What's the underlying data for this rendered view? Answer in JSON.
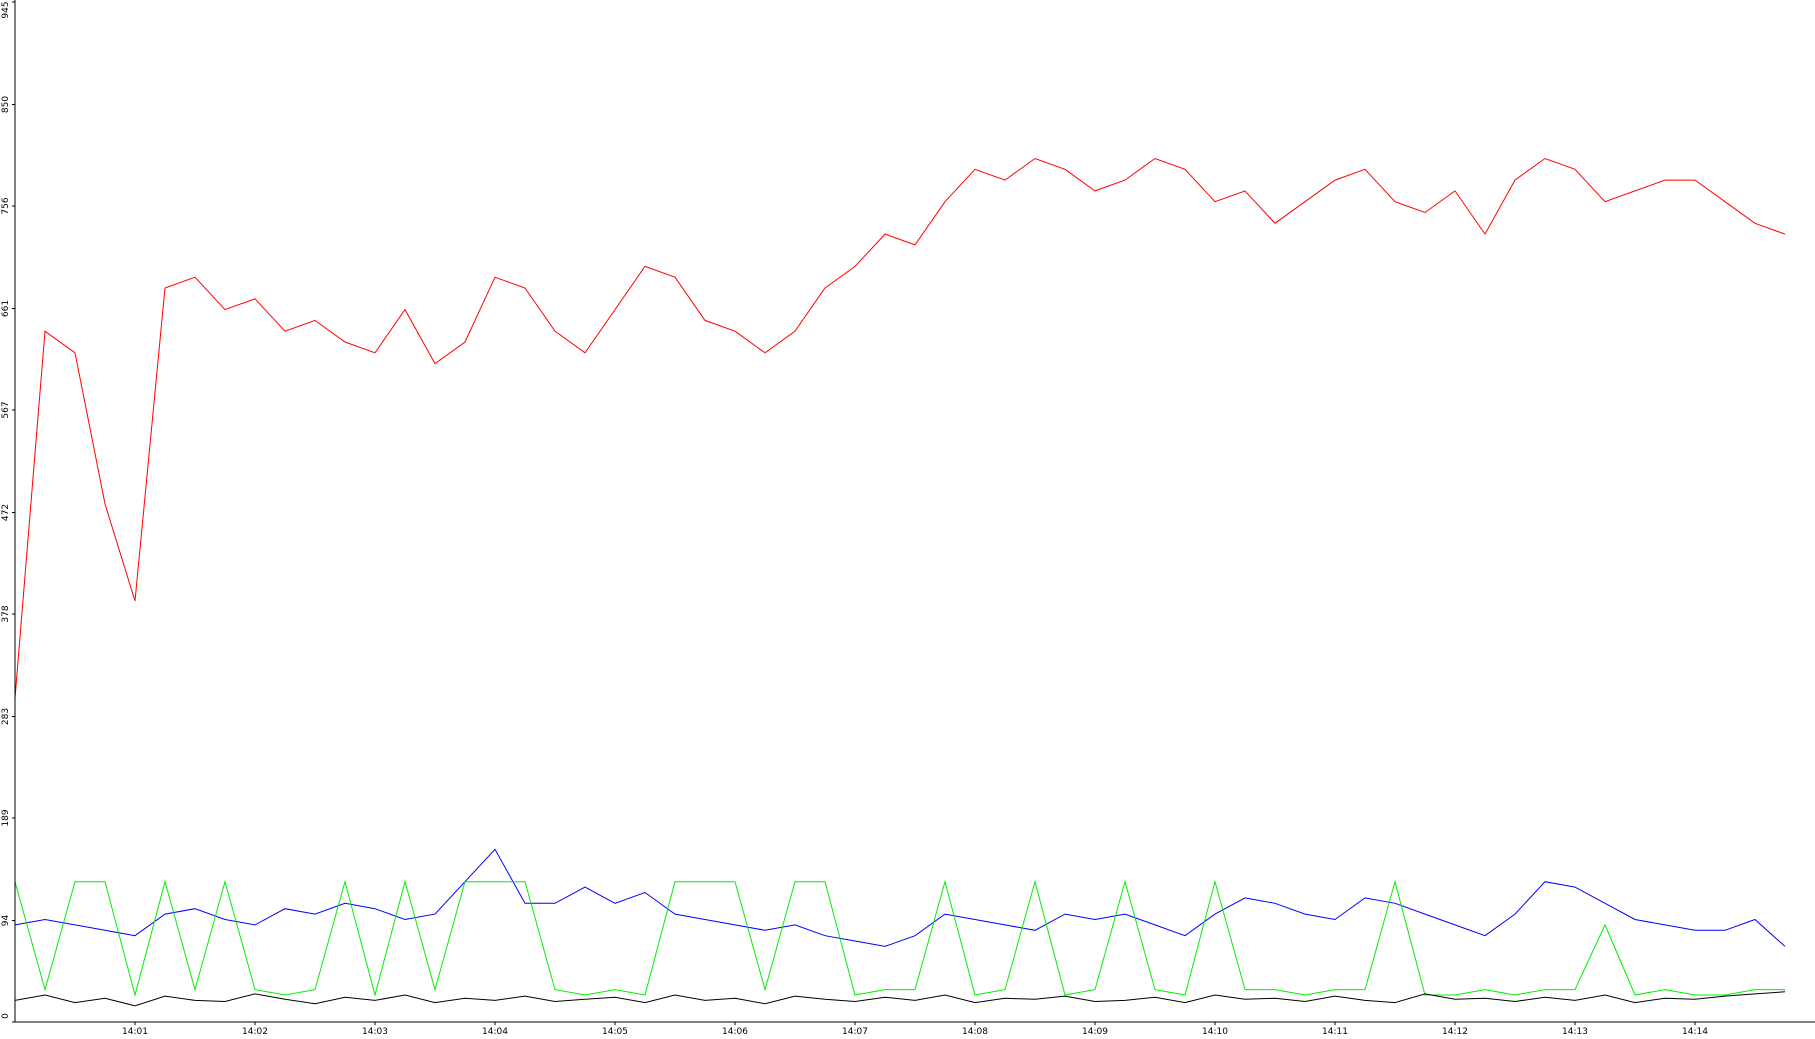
{
  "chart_data": {
    "type": "line",
    "categories": [
      null,
      null,
      null,
      null,
      "14:01",
      null,
      null,
      null,
      "14:02",
      null,
      null,
      null,
      "14:03",
      null,
      null,
      null,
      "14:04",
      null,
      null,
      null,
      "14:05",
      null,
      null,
      null,
      "14:06",
      null,
      null,
      null,
      "14:07",
      null,
      null,
      null,
      "14:08",
      null,
      null,
      null,
      "14:09",
      null,
      null,
      null,
      "14:10",
      null,
      null,
      null,
      "14:11",
      null,
      null,
      null,
      "14:12",
      null,
      null,
      null,
      "14:13",
      null,
      null,
      null,
      "14:14",
      null,
      null,
      null
    ],
    "series": [
      {
        "color": "#ff0000",
        "values": [
          300,
          640,
          620,
          480,
          390,
          680,
          690,
          660,
          670,
          640,
          650,
          630,
          620,
          660,
          610,
          630,
          690,
          680,
          640,
          620,
          660,
          700,
          690,
          650,
          640,
          620,
          640,
          680,
          700,
          730,
          720,
          760,
          790,
          780,
          800,
          790,
          770,
          780,
          800,
          790,
          760,
          770,
          740,
          760,
          780,
          790,
          760,
          750,
          770,
          730,
          780,
          800,
          790,
          760,
          770,
          780,
          780,
          760,
          740,
          730
        ]
      },
      {
        "color": "#0000ff",
        "values": [
          90,
          95,
          90,
          85,
          80,
          100,
          105,
          95,
          90,
          105,
          100,
          110,
          105,
          95,
          100,
          130,
          160,
          110,
          110,
          125,
          110,
          120,
          100,
          95,
          90,
          85,
          90,
          80,
          75,
          70,
          80,
          100,
          95,
          90,
          85,
          100,
          95,
          100,
          90,
          80,
          100,
          115,
          110,
          100,
          95,
          115,
          110,
          100,
          90,
          80,
          100,
          130,
          125,
          110,
          95,
          90,
          85,
          85,
          95,
          70
        ]
      },
      {
        "color": "#00ee00",
        "values": [
          130,
          30,
          130,
          130,
          25,
          130,
          30,
          130,
          30,
          25,
          30,
          130,
          25,
          130,
          30,
          130,
          130,
          130,
          30,
          25,
          30,
          25,
          130,
          130,
          130,
          30,
          130,
          130,
          25,
          30,
          30,
          130,
          25,
          30,
          130,
          25,
          30,
          130,
          30,
          25,
          130,
          30,
          30,
          25,
          30,
          30,
          130,
          25,
          25,
          30,
          25,
          30,
          30,
          90,
          25,
          30,
          25,
          25,
          30,
          30
        ]
      },
      {
        "color": "#000000",
        "values": [
          20,
          25,
          18,
          22,
          15,
          24,
          20,
          19,
          26,
          21,
          17,
          23,
          20,
          25,
          18,
          22,
          20,
          24,
          19,
          21,
          23,
          18,
          25,
          20,
          22,
          17,
          24,
          21,
          19,
          23,
          20,
          25,
          18,
          22,
          21,
          24,
          19,
          20,
          23,
          18,
          25,
          21,
          22,
          19,
          24,
          20,
          18,
          26,
          21,
          22,
          19,
          23,
          20,
          25,
          18,
          22,
          21,
          24,
          26,
          28
        ]
      }
    ],
    "ylim": [
      0,
      945
    ],
    "yticks": [
      0,
      94,
      189,
      283,
      378,
      472,
      567,
      661,
      756,
      850,
      945
    ]
  }
}
